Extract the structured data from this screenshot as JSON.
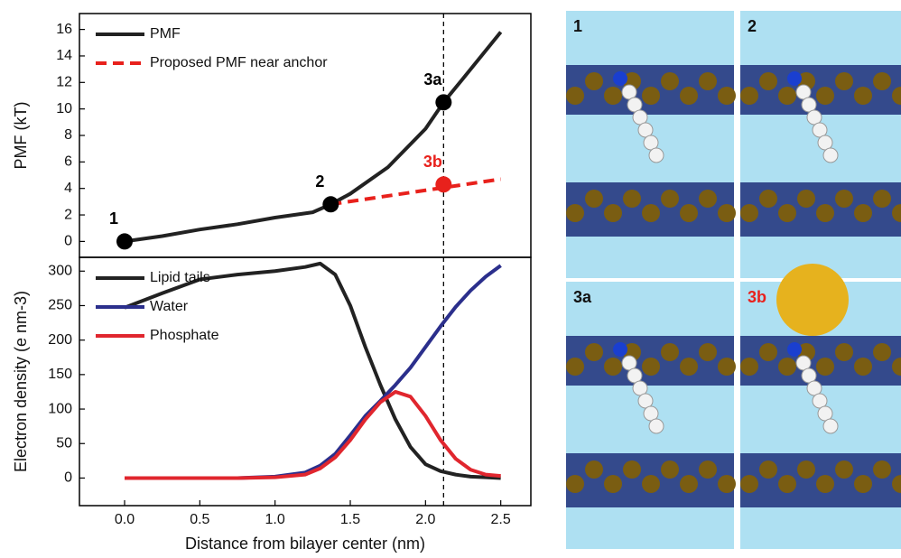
{
  "chart_data": [
    {
      "type": "line",
      "ylabel": "PMF (kT)",
      "xlim": [
        -0.3,
        2.7
      ],
      "ylim": [
        -1.2,
        17.2
      ],
      "yticks": [
        0,
        2,
        4,
        6,
        8,
        10,
        12,
        14,
        16
      ],
      "vline_x": 2.12,
      "series": [
        {
          "name": "PMF",
          "color": "#222222",
          "dashed": false,
          "x": [
            0,
            0.25,
            0.5,
            0.75,
            1.0,
            1.25,
            1.37,
            1.5,
            1.75,
            2.0,
            2.12,
            2.25,
            2.5
          ],
          "values": [
            0,
            0.4,
            0.9,
            1.3,
            1.8,
            2.2,
            2.8,
            3.6,
            5.6,
            8.5,
            10.5,
            12.3,
            15.8
          ]
        },
        {
          "name": "Proposed PMF near anchor",
          "color": "#e8211c",
          "dashed": true,
          "x": [
            1.37,
            2.5
          ],
          "values": [
            2.8,
            4.7
          ]
        }
      ],
      "markers": [
        {
          "label": "1",
          "x": 0,
          "y": 0,
          "color": "#000000"
        },
        {
          "label": "2",
          "x": 1.37,
          "y": 2.8,
          "color": "#000000"
        },
        {
          "label": "3a",
          "x": 2.12,
          "y": 10.5,
          "color": "#000000"
        },
        {
          "label": "3b",
          "x": 2.12,
          "y": 4.3,
          "color": "#e8211c"
        }
      ]
    },
    {
      "type": "line",
      "ylabel": "Electron density (e nm-3)",
      "xlabel": "Distance from bilayer center (nm)",
      "xlim": [
        -0.3,
        2.7
      ],
      "ylim": [
        -40,
        320
      ],
      "xticks": [
        {
          "value": 0,
          "label": "0.0"
        },
        0.5,
        {
          "value": 1,
          "label": "1.0"
        },
        1.5,
        {
          "value": 2,
          "label": "2.0"
        },
        2.5
      ],
      "yticks": [
        0,
        50,
        100,
        150,
        200,
        250,
        300
      ],
      "vline_x": 2.12,
      "series": [
        {
          "name": "Lipid tails",
          "color": "#222222",
          "dashed": false,
          "x": [
            0,
            0.25,
            0.5,
            0.75,
            1.0,
            1.2,
            1.3,
            1.4,
            1.5,
            1.6,
            1.7,
            1.8,
            1.9,
            2.0,
            2.1,
            2.2,
            2.3,
            2.4,
            2.5
          ],
          "values": [
            247,
            268,
            288,
            295,
            300,
            306,
            311,
            295,
            250,
            190,
            135,
            85,
            45,
            20,
            10,
            5,
            2,
            1,
            0
          ]
        },
        {
          "name": "Water",
          "color": "#2b2f8c",
          "dashed": false,
          "x": [
            0,
            0.25,
            0.5,
            0.75,
            1.0,
            1.2,
            1.3,
            1.4,
            1.5,
            1.6,
            1.7,
            1.8,
            1.9,
            2.0,
            2.1,
            2.2,
            2.3,
            2.4,
            2.5
          ],
          "values": [
            0,
            0,
            0,
            0,
            2,
            8,
            18,
            35,
            62,
            90,
            112,
            135,
            160,
            190,
            220,
            248,
            272,
            292,
            308
          ]
        },
        {
          "name": "Phosphate",
          "color": "#e0262e",
          "dashed": false,
          "x": [
            0,
            0.25,
            0.5,
            0.75,
            1.0,
            1.2,
            1.3,
            1.4,
            1.5,
            1.6,
            1.7,
            1.8,
            1.9,
            2.0,
            2.1,
            2.2,
            2.3,
            2.4,
            2.5
          ],
          "values": [
            0,
            0,
            0,
            0,
            1,
            5,
            14,
            30,
            55,
            85,
            110,
            125,
            118,
            90,
            55,
            28,
            12,
            5,
            3
          ]
        }
      ]
    }
  ],
  "panels": [
    {
      "label": "1"
    },
    {
      "label": "2"
    },
    {
      "label": "3a"
    },
    {
      "label": "3b"
    }
  ]
}
